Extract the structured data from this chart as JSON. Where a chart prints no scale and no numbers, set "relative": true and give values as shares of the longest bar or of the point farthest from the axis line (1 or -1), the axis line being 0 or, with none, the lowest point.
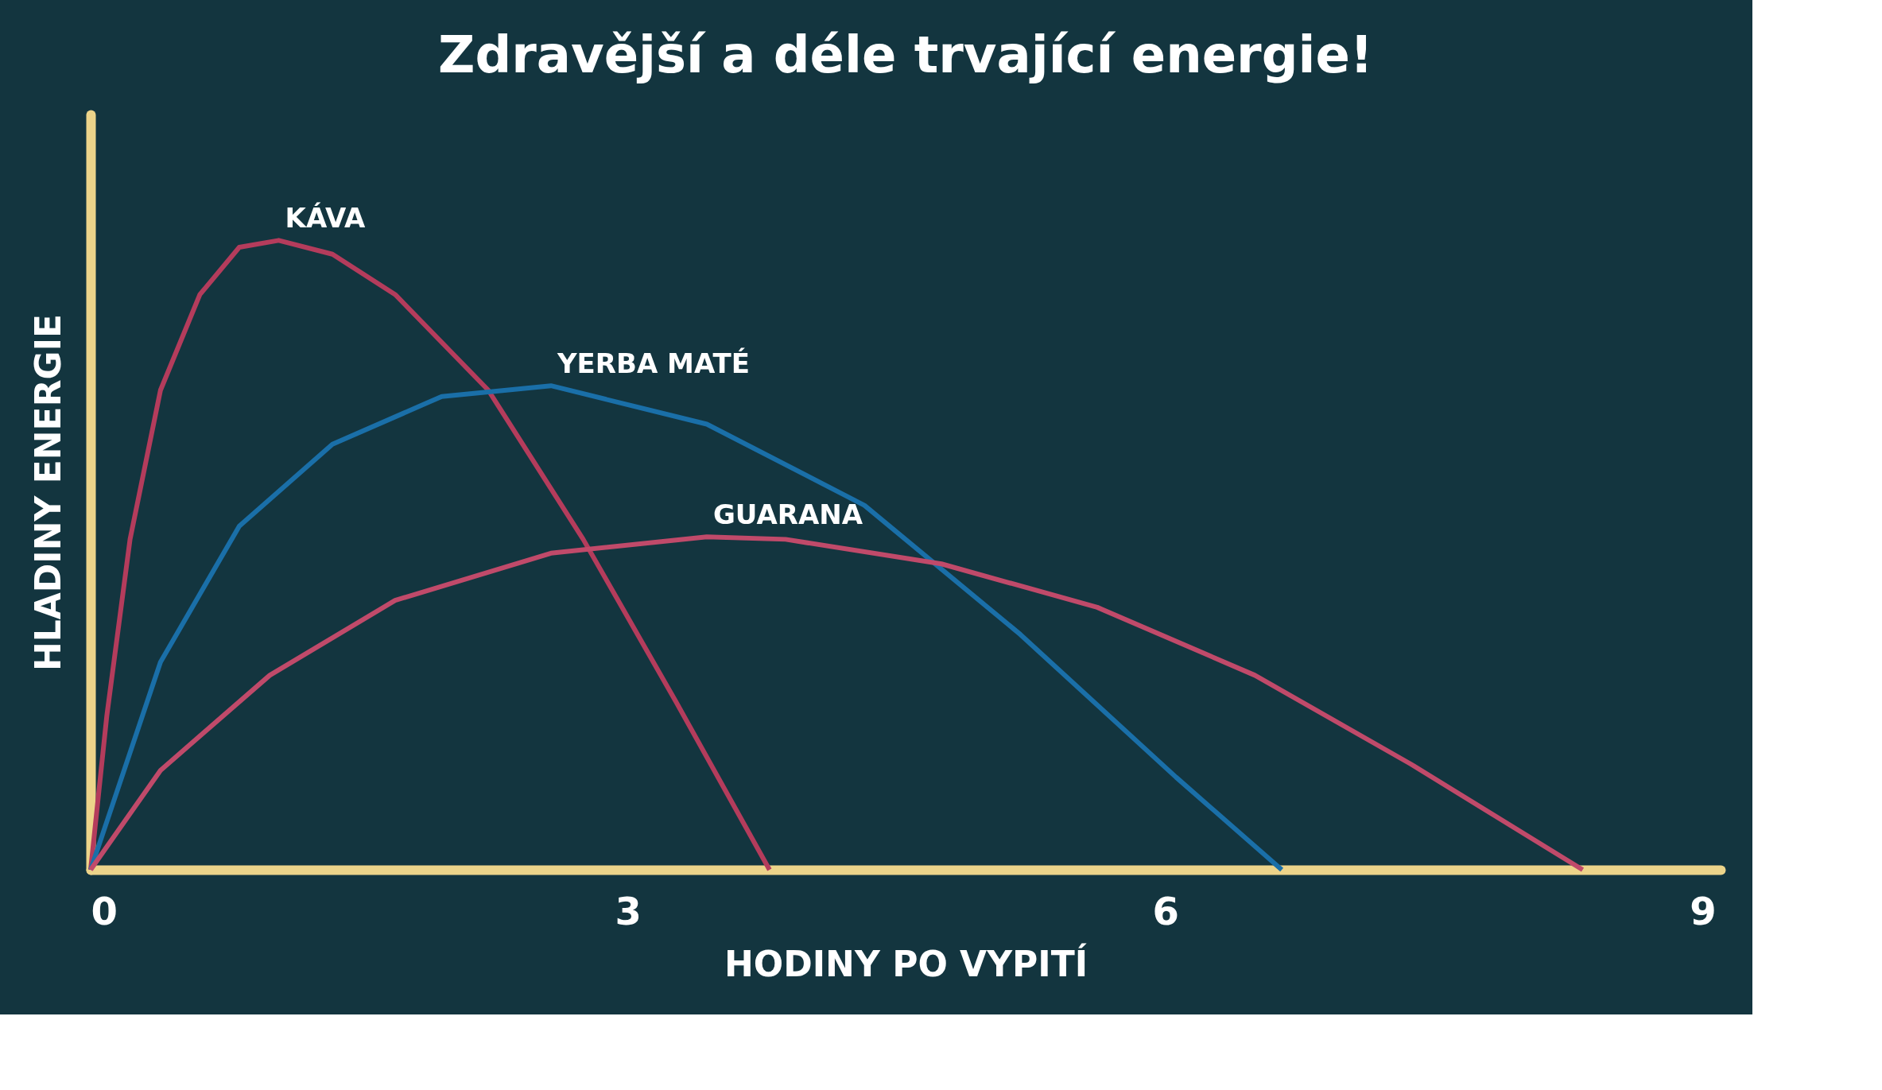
{
  "chart_data": {
    "type": "line",
    "title": "Zdravější a déle trvající energie!",
    "xlabel": "HODINY PO VYPITÍ",
    "ylabel": "HLADINY ENERGIE",
    "relative": true,
    "xlim": [
      0,
      9.1
    ],
    "xticks": [
      0,
      3,
      6,
      9
    ],
    "legend": false,
    "grid": false,
    "marker": "none",
    "line_style": "solid",
    "series": [
      {
        "name": "KÁVA",
        "color": "#b43c5c",
        "x": [
          0,
          0.09,
          0.22,
          0.39,
          0.61,
          0.83,
          1.05,
          1.35,
          1.7,
          2.22,
          2.75,
          3.27,
          3.79
        ],
        "values": [
          0,
          0.244,
          0.525,
          0.762,
          0.914,
          0.989,
          1.0,
          0.978,
          0.914,
          0.762,
          0.525,
          0.266,
          0
        ]
      },
      {
        "name": "YERBA MATÉ",
        "color": "#1a6fa8",
        "x": [
          0,
          0.39,
          0.83,
          1.35,
          1.96,
          2.57,
          3.44,
          4.32,
          5.19,
          6.06,
          6.65
        ],
        "values": [
          0,
          0.33,
          0.546,
          0.676,
          0.752,
          0.769,
          0.708,
          0.579,
          0.374,
          0.147,
          0
        ]
      },
      {
        "name": "GUARANA",
        "color": "#c04a6a",
        "x": [
          0,
          0.39,
          1.0,
          1.7,
          2.57,
          3.44,
          3.88,
          4.75,
          5.62,
          6.5,
          7.37,
          8.33
        ],
        "values": [
          0,
          0.158,
          0.309,
          0.428,
          0.503,
          0.529,
          0.525,
          0.486,
          0.417,
          0.309,
          0.168,
          0
        ]
      }
    ]
  }
}
